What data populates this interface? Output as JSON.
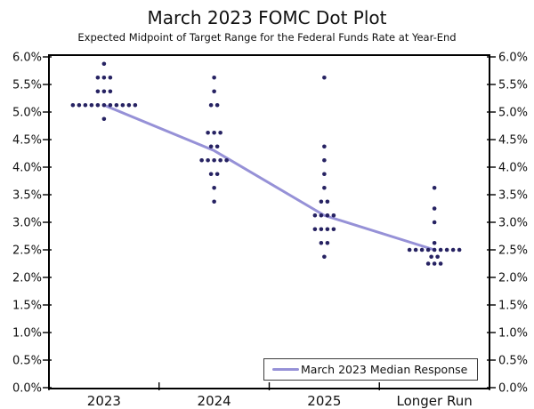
{
  "header": {
    "title": "March 2023 FOMC Dot Plot",
    "subtitle": "Expected Midpoint of Target Range for the Federal Funds Rate at Year-End"
  },
  "legend": {
    "label": "March 2023 Median Response"
  },
  "colors": {
    "dot": "#262262",
    "median_line": "#9691d7",
    "axis": "#000000",
    "text": "#111111",
    "background": "#ffffff"
  },
  "chart_data": {
    "type": "scatter",
    "title": "March 2023 FOMC Dot Plot",
    "subtitle": "Expected Midpoint of Target Range for the Federal Funds Rate at Year-End",
    "categories": [
      "2023",
      "2024",
      "2025",
      "Longer Run"
    ],
    "ylabel": "",
    "xlabel": "",
    "ylim": [
      0.0,
      6.0
    ],
    "ytick_step": 0.5,
    "ytick_labels": [
      "0.0%",
      "0.5%",
      "1.0%",
      "1.5%",
      "2.0%",
      "2.5%",
      "3.0%",
      "3.5%",
      "4.0%",
      "4.5%",
      "5.0%",
      "5.5%",
      "6.0%"
    ],
    "grid": false,
    "legend_position": "bottom-right",
    "legend_entries": [
      "March 2023 Median Response"
    ],
    "dot_distributions": [
      {
        "category": "2023",
        "dots": [
          {
            "rate": 5.875,
            "count": 1
          },
          {
            "rate": 5.625,
            "count": 3
          },
          {
            "rate": 5.375,
            "count": 3
          },
          {
            "rate": 5.125,
            "count": 11
          },
          {
            "rate": 4.875,
            "count": 1
          }
        ]
      },
      {
        "category": "2024",
        "dots": [
          {
            "rate": 5.625,
            "count": 1
          },
          {
            "rate": 5.375,
            "count": 1
          },
          {
            "rate": 5.125,
            "count": 2
          },
          {
            "rate": 4.625,
            "count": 3
          },
          {
            "rate": 4.375,
            "count": 2
          },
          {
            "rate": 4.125,
            "count": 5
          },
          {
            "rate": 3.875,
            "count": 2
          },
          {
            "rate": 3.625,
            "count": 1
          },
          {
            "rate": 3.375,
            "count": 1
          }
        ]
      },
      {
        "category": "2025",
        "dots": [
          {
            "rate": 5.625,
            "count": 1
          },
          {
            "rate": 4.375,
            "count": 1
          },
          {
            "rate": 4.125,
            "count": 1
          },
          {
            "rate": 3.875,
            "count": 1
          },
          {
            "rate": 3.625,
            "count": 1
          },
          {
            "rate": 3.375,
            "count": 2
          },
          {
            "rate": 3.125,
            "count": 4
          },
          {
            "rate": 2.875,
            "count": 4
          },
          {
            "rate": 2.625,
            "count": 2
          },
          {
            "rate": 2.375,
            "count": 1
          }
        ]
      },
      {
        "category": "Longer Run",
        "dots": [
          {
            "rate": 3.625,
            "count": 1
          },
          {
            "rate": 3.25,
            "count": 1
          },
          {
            "rate": 3.0,
            "count": 1
          },
          {
            "rate": 2.625,
            "count": 1
          },
          {
            "rate": 2.5,
            "count": 9
          },
          {
            "rate": 2.375,
            "count": 2
          },
          {
            "rate": 2.25,
            "count": 3
          }
        ]
      }
    ],
    "median_series": {
      "name": "March 2023 Median Response",
      "x": [
        "2023",
        "2024",
        "2025",
        "Longer Run"
      ],
      "values": [
        5.125,
        4.3,
        3.125,
        2.5
      ]
    }
  }
}
